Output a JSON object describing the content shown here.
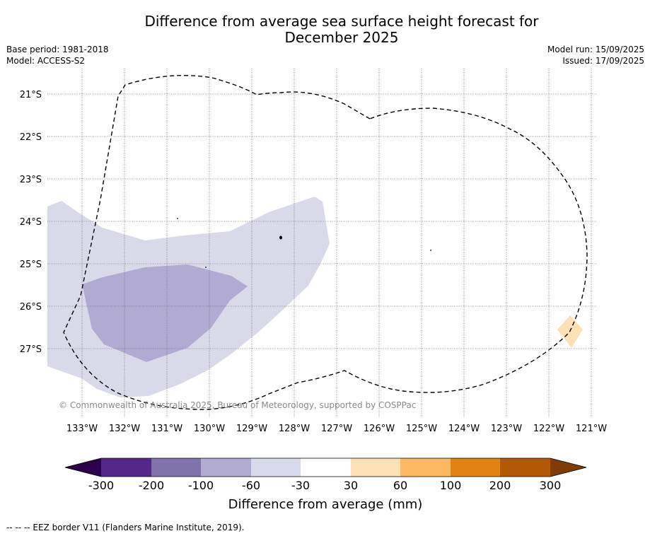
{
  "title_line1": "Difference from average sea surface height forecast for",
  "title_line2": "December 2025",
  "meta_left": {
    "base_period": "Base period: 1981-2018",
    "model": "Model: ACCESS-S2"
  },
  "meta_right": {
    "model_run": "Model run: 15/09/2025",
    "issued": "Issued: 17/09/2025"
  },
  "map": {
    "lat_labels": [
      "21°S",
      "22°S",
      "23°S",
      "24°S",
      "25°S",
      "26°S",
      "27°S"
    ],
    "lon_labels": [
      "133°W",
      "132°W",
      "131°W",
      "130°W",
      "129°W",
      "128°W",
      "127°W",
      "126°W",
      "125°W",
      "124°W",
      "123°W",
      "122°W",
      "121°W"
    ],
    "copyright": "© Commonwealth of Australia 2025, Bureau of Meteorology, supported by COSPPac",
    "fill_colors": {
      "band_-60_-30": "#d9d9ea",
      "band_-100_-60": "#b1aad2",
      "band_30_60": "#fee0b6"
    },
    "eez_color": "#000000"
  },
  "colorbar": {
    "ticks": [
      "-300",
      "-200",
      "-100",
      "-60",
      "-30",
      "30",
      "60",
      "100",
      "200",
      "300"
    ],
    "colors": [
      "#2d004b",
      "#542788",
      "#8073ac",
      "#b2abd2",
      "#d8daeb",
      "#ffffff",
      "#fee0b6",
      "#fdb863",
      "#e08214",
      "#b35806",
      "#7f3b08"
    ],
    "label": "Difference from average (mm)"
  },
  "footnote": "-- -- -- EEZ border V11 (Flanders Marine Institute, 2019)."
}
